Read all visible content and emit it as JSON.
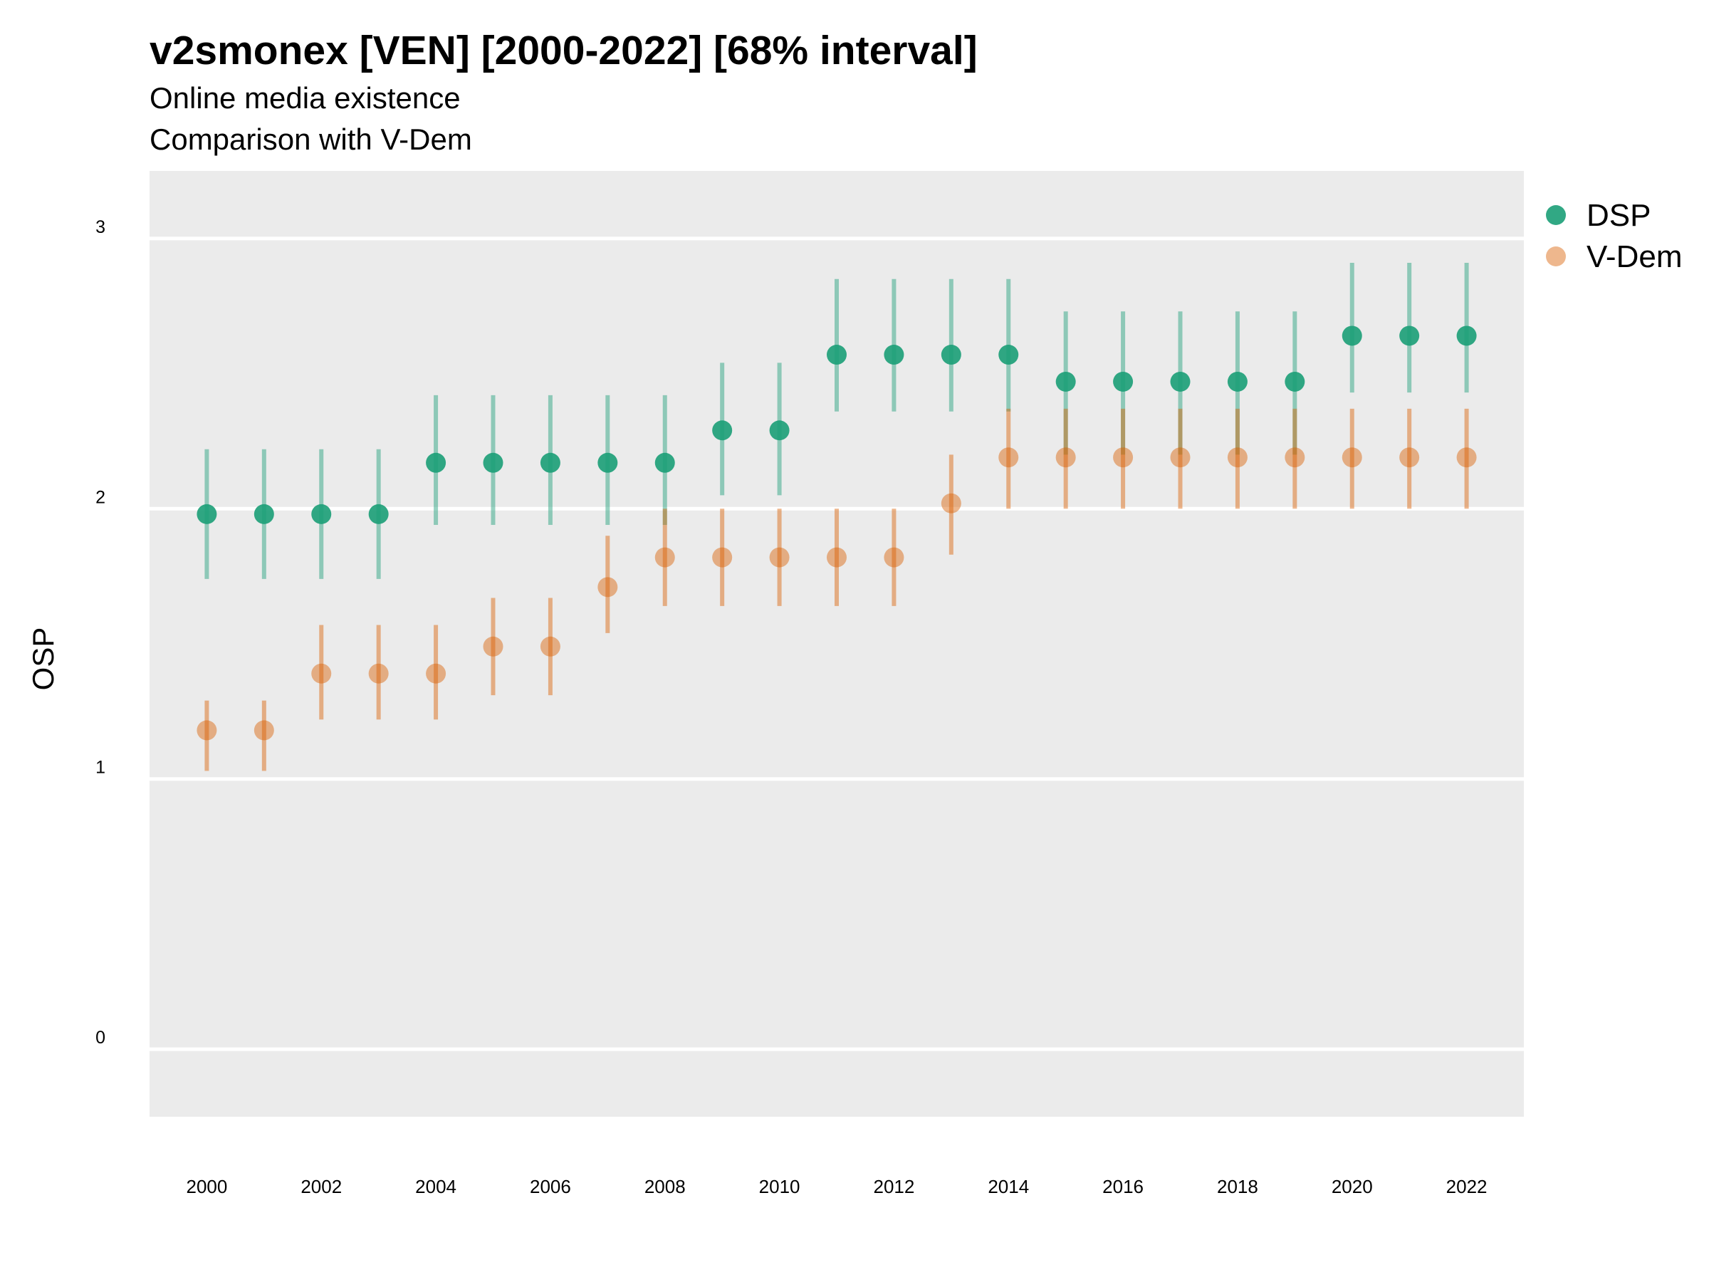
{
  "chart_data": {
    "type": "scatter",
    "title": "v2smonex [VEN] [2000-2022] [68% interval]",
    "subtitle": [
      "Online media existence",
      "Comparison with V-Dem"
    ],
    "xlabel": "",
    "ylabel": "OSP",
    "ylim": [
      -0.25,
      3.25
    ],
    "xlim": [
      1999,
      2023
    ],
    "y_ticks": [
      0,
      1,
      2,
      3
    ],
    "x_ticks": [
      2000,
      2002,
      2004,
      2006,
      2008,
      2010,
      2012,
      2014,
      2016,
      2018,
      2020,
      2022
    ],
    "grid": true,
    "legend_position": "right",
    "x": [
      2000,
      2001,
      2002,
      2003,
      2004,
      2005,
      2006,
      2007,
      2008,
      2009,
      2010,
      2011,
      2012,
      2013,
      2014,
      2015,
      2016,
      2017,
      2018,
      2019,
      2020,
      2021,
      2022
    ],
    "series": [
      {
        "name": "DSP",
        "color": "#1b9e77",
        "values": [
          1.98,
          1.98,
          1.98,
          1.98,
          2.17,
          2.17,
          2.17,
          2.17,
          2.17,
          2.29,
          2.29,
          2.57,
          2.57,
          2.57,
          2.57,
          2.47,
          2.47,
          2.47,
          2.47,
          2.47,
          2.64,
          2.64,
          2.64
        ],
        "lower": [
          1.74,
          1.74,
          1.74,
          1.74,
          1.94,
          1.94,
          1.94,
          1.94,
          1.94,
          2.05,
          2.05,
          2.36,
          2.36,
          2.36,
          2.36,
          2.2,
          2.2,
          2.2,
          2.2,
          2.2,
          2.43,
          2.43,
          2.43
        ],
        "upper": [
          2.22,
          2.22,
          2.22,
          2.22,
          2.42,
          2.42,
          2.42,
          2.42,
          2.42,
          2.54,
          2.54,
          2.85,
          2.85,
          2.85,
          2.85,
          2.73,
          2.73,
          2.73,
          2.73,
          2.73,
          2.91,
          2.91,
          2.91
        ]
      },
      {
        "name": "V-Dem",
        "color": "#d95f02",
        "values": [
          1.18,
          1.18,
          1.39,
          1.39,
          1.39,
          1.49,
          1.49,
          1.71,
          1.82,
          1.82,
          1.82,
          1.82,
          1.82,
          2.02,
          2.19,
          2.19,
          2.19,
          2.19,
          2.19,
          2.19,
          2.19,
          2.19,
          2.19
        ],
        "lower": [
          1.03,
          1.03,
          1.22,
          1.22,
          1.22,
          1.31,
          1.31,
          1.54,
          1.64,
          1.64,
          1.64,
          1.64,
          1.64,
          1.83,
          2.0,
          2.0,
          2.0,
          2.0,
          2.0,
          2.0,
          2.0,
          2.0,
          2.0
        ],
        "upper": [
          1.29,
          1.29,
          1.57,
          1.57,
          1.57,
          1.67,
          1.67,
          1.9,
          2.0,
          2.0,
          2.0,
          2.0,
          2.0,
          2.2,
          2.37,
          2.37,
          2.37,
          2.37,
          2.37,
          2.37,
          2.37,
          2.37,
          2.37
        ]
      }
    ]
  }
}
